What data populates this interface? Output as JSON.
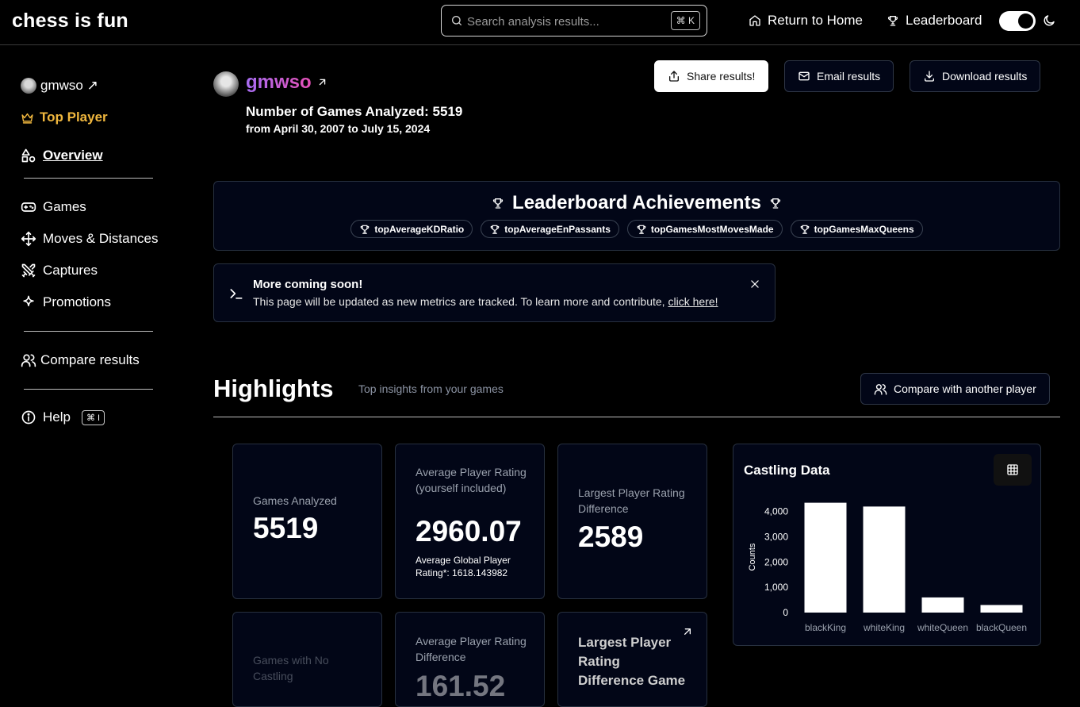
{
  "header": {
    "brand": "chess is fun",
    "search_placeholder": "Search analysis results...",
    "search_shortcut": "⌘ K",
    "nav": {
      "home": "Return to Home",
      "leaderboard": "Leaderboard"
    }
  },
  "sidebar": {
    "user": "gmwso ↗",
    "rank": "Top Player",
    "items": {
      "overview": "Overview",
      "games": "Games",
      "moves": "Moves & Distances",
      "captures": "Captures",
      "promotions": "Promotions",
      "compare": "Compare results",
      "help": "Help"
    },
    "help_shortcut": "⌘ I"
  },
  "profile": {
    "name": "gmwso",
    "games_line": "Number of Games Analyzed: 5519",
    "date_range": "from April 30, 2007 to July 15, 2024"
  },
  "actions": {
    "share": "Share results!",
    "email": "Email results",
    "download": "Download results"
  },
  "leaderboard": {
    "title": "Leaderboard Achievements",
    "badges": [
      "topAverageKDRatio",
      "topAverageEnPassants",
      "topGamesMostMovesMade",
      "topGamesMaxQueens"
    ]
  },
  "alert": {
    "title": "More coming soon!",
    "body": "This page will be updated as new metrics are tracked. To learn more and contribute, ",
    "link": "click here!"
  },
  "highlights": {
    "title": "Highlights",
    "subtitle": "Top insights from your games",
    "compare_label": "Compare with another player",
    "cards": {
      "games_analyzed": {
        "label": "Games Analyzed",
        "value": "5519"
      },
      "avg_rating": {
        "label": "Average Player Rating (yourself included)",
        "value": "2960.07",
        "note": "Average Global Player Rating*: 1618.143982"
      },
      "largest_diff": {
        "label": "Largest Player Rating Difference",
        "value": "2589"
      },
      "no_castling": {
        "label": "Games with No Castling"
      },
      "avg_diff": {
        "label": "Average Player Rating Difference",
        "value": "161.52"
      },
      "largest_diff_game": {
        "label": "Largest Player Rating Difference Game"
      }
    }
  },
  "chart_data": {
    "type": "bar",
    "title": "Castling Data",
    "ylabel": "Counts",
    "xlabel": "",
    "categories": [
      "blackKing",
      "whiteKing",
      "whiteQueen",
      "blackQueen"
    ],
    "values": [
      4350,
      4200,
      600,
      300
    ],
    "yticks": [
      0,
      1000,
      2000,
      3000,
      4000
    ],
    "ytick_labels": [
      "0",
      "1,000",
      "2,000",
      "3,000",
      "4,000"
    ],
    "ylim": [
      0,
      4400
    ],
    "grid": false,
    "bar_color": "#ffffff"
  }
}
